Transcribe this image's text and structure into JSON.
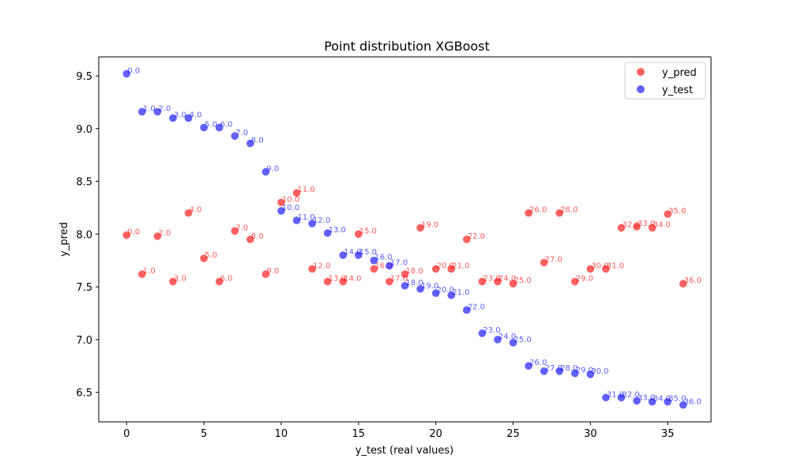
{
  "chart_data": {
    "type": "scatter",
    "title": "Point distribution XGBoost",
    "xlabel": "y_test (real values)",
    "ylabel": "y_pred",
    "xlim": [
      -1.8,
      37.8
    ],
    "ylim": [
      6.22,
      9.68
    ],
    "x_ticks": [
      0,
      5,
      10,
      15,
      20,
      25,
      30,
      35
    ],
    "y_ticks": [
      6.5,
      7.0,
      7.5,
      8.0,
      8.5,
      9.0,
      9.5
    ],
    "x_tick_labels": [
      "0",
      "5",
      "10",
      "15",
      "20",
      "25",
      "30",
      "35"
    ],
    "y_tick_labels": [
      "6.5",
      "7.0",
      "7.5",
      "8.0",
      "8.5",
      "9.0",
      "9.5"
    ],
    "grid": false,
    "legend_position": "top-right",
    "series": [
      {
        "name": "y_pred",
        "color": "#ff0000",
        "x": [
          0,
          1,
          2,
          3,
          4,
          5,
          6,
          7,
          8,
          9,
          10,
          11,
          12,
          13,
          14,
          15,
          16,
          17,
          18,
          19,
          20,
          21,
          22,
          23,
          24,
          25,
          26,
          27,
          28,
          29,
          30,
          31,
          32,
          33,
          34,
          35,
          36
        ],
        "y": [
          7.99,
          7.62,
          7.98,
          7.55,
          8.2,
          7.77,
          7.55,
          8.03,
          7.95,
          7.62,
          8.3,
          8.39,
          7.67,
          7.55,
          7.55,
          8.0,
          7.67,
          7.55,
          7.62,
          8.06,
          7.67,
          7.67,
          7.95,
          7.55,
          7.55,
          7.53,
          8.2,
          7.73,
          8.2,
          7.55,
          7.67,
          7.67,
          8.06,
          8.07,
          8.06,
          8.19,
          7.53
        ],
        "labels": [
          "0.0",
          "1.0",
          "2.0",
          "3.0",
          "4.0",
          "5.0",
          "6.0",
          "7.0",
          "8.0",
          "9.0",
          "10.0",
          "11.0",
          "12.0",
          "13.0",
          "14.0",
          "15.0",
          "16.0",
          "17.0",
          "18.0",
          "19.0",
          "20.0",
          "21.0",
          "22.0",
          "23.0",
          "24.0",
          "25.0",
          "26.0",
          "27.0",
          "28.0",
          "29.0",
          "30.0",
          "31.0",
          "32.0",
          "33.0",
          "34.0",
          "35.0",
          "36.0"
        ]
      },
      {
        "name": "y_test",
        "color": "#0000ff",
        "x": [
          0,
          1,
          2,
          3,
          4,
          5,
          6,
          7,
          8,
          9,
          10,
          11,
          12,
          13,
          14,
          15,
          16,
          17,
          18,
          19,
          20,
          21,
          22,
          23,
          24,
          25,
          26,
          27,
          28,
          29,
          30,
          31,
          32,
          33,
          34,
          35,
          36
        ],
        "y": [
          9.52,
          9.16,
          9.16,
          9.1,
          9.1,
          9.01,
          9.01,
          8.93,
          8.86,
          8.59,
          8.22,
          8.13,
          8.1,
          8.01,
          7.8,
          7.8,
          7.75,
          7.7,
          7.51,
          7.48,
          7.44,
          7.42,
          7.28,
          7.06,
          7.0,
          6.97,
          6.75,
          6.7,
          6.7,
          6.68,
          6.67,
          6.45,
          6.45,
          6.42,
          6.41,
          6.41,
          6.38
        ],
        "labels": [
          "0.0",
          "1.0",
          "2.0",
          "3.0",
          "4.0",
          "5.0",
          "6.0",
          "7.0",
          "8.0",
          "9.0",
          "10.0",
          "11.0",
          "12.0",
          "13.0",
          "14.0",
          "15.0",
          "16.0",
          "17.0",
          "18.0",
          "19.0",
          "20.0",
          "21.0",
          "22.0",
          "23.0",
          "24.0",
          "25.0",
          "26.0",
          "27.0",
          "28.0",
          "29.0",
          "30.0",
          "31.0",
          "32.0",
          "33.0",
          "34.0",
          "35.0",
          "36.0"
        ]
      }
    ]
  }
}
